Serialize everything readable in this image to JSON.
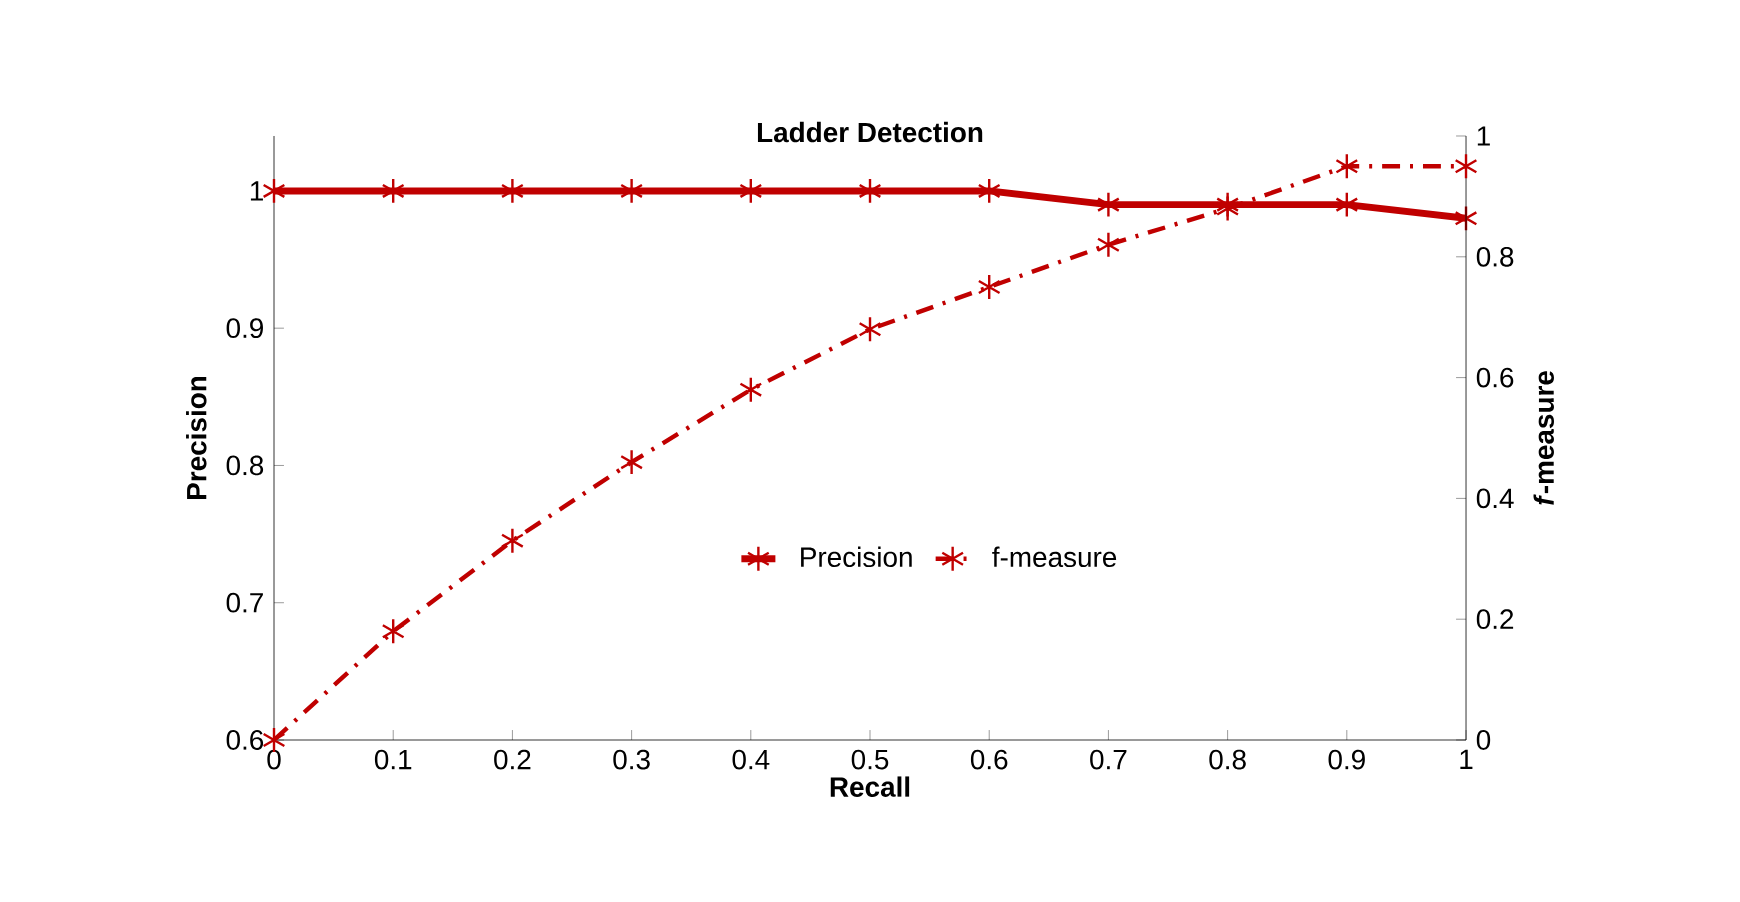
{
  "chart_data": {
    "type": "line",
    "title": "Ladder Detection",
    "xlabel": "Recall",
    "ylabel": "Precision",
    "y2label": "*f*-measure",
    "x": [
      0,
      0.1,
      0.2,
      0.3,
      0.4,
      0.5,
      0.6,
      0.7,
      0.8,
      0.9,
      1
    ],
    "series": [
      {
        "name": "Precision",
        "color": "#c00000",
        "line_style": "solid",
        "values": [
          1,
          1,
          1,
          1,
          1,
          1,
          1,
          0.99,
          0.99,
          0.99,
          0.98
        ]
      },
      {
        "name": "f-measure",
        "color": "#c00000",
        "line_style": "dashed",
        "axis": "y2",
        "values": [
          0,
          0.18,
          0.33,
          0.46,
          0.58,
          0.68,
          0.75,
          0.82,
          0.88,
          0.95,
          0.95
        ]
      }
    ],
    "xlim": [
      0,
      1
    ],
    "xticks": [
      0,
      0.1,
      0.2,
      0.3,
      0.4,
      0.5,
      0.6,
      0.7,
      0.8,
      0.9,
      1
    ],
    "ylim": [
      0.6,
      1.04
    ],
    "yticks": [
      0.6,
      0.7,
      0.8,
      0.9,
      1
    ],
    "y2lim": [
      0,
      1
    ],
    "y2ticks": [
      0,
      0.2,
      0.4,
      0.6,
      0.8,
      1
    ],
    "marker": "cross",
    "legend": "center",
    "grid": false
  }
}
